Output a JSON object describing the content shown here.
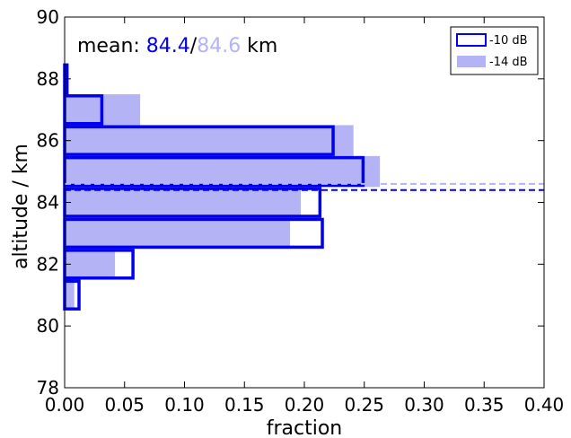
{
  "chart_data": {
    "type": "bar",
    "orientation": "horizontal-histogram",
    "xlabel": "fraction",
    "ylabel": "altitude / km",
    "xlim": [
      0.0,
      0.4
    ],
    "ylim": [
      78,
      90
    ],
    "xticks": [
      "0.00",
      "0.05",
      "0.10",
      "0.15",
      "0.20",
      "0.25",
      "0.30",
      "0.35",
      "0.40"
    ],
    "yticks": [
      "78",
      "80",
      "82",
      "84",
      "86",
      "88",
      "90"
    ],
    "grid": false,
    "legend_position": "top-right",
    "annotation": {
      "prefix": "mean: ",
      "value1": "84.4",
      "separator": "/",
      "value2": "84.6",
      "unit": " km"
    },
    "series": [
      {
        "name": "-10 dB",
        "style": "outline",
        "color": "#0000ee",
        "mean_line": 84.4,
        "bins": [
          {
            "y0": 80.5,
            "y1": 81.5,
            "value": 0.012
          },
          {
            "y0": 81.5,
            "y1": 82.5,
            "value": 0.057
          },
          {
            "y0": 82.5,
            "y1": 83.5,
            "value": 0.215
          },
          {
            "y0": 83.5,
            "y1": 84.5,
            "value": 0.213
          },
          {
            "y0": 84.5,
            "y1": 85.5,
            "value": 0.249
          },
          {
            "y0": 85.5,
            "y1": 86.5,
            "value": 0.224
          },
          {
            "y0": 86.5,
            "y1": 87.5,
            "value": 0.031
          },
          {
            "y0": 87.5,
            "y1": 88.5,
            "value": 0.002
          }
        ]
      },
      {
        "name": "-14 dB",
        "style": "filled",
        "color": "#b3b3f5",
        "mean_line": 84.6,
        "bins": [
          {
            "y0": 80.5,
            "y1": 81.5,
            "value": 0.008
          },
          {
            "y0": 81.5,
            "y1": 82.5,
            "value": 0.042
          },
          {
            "y0": 82.5,
            "y1": 83.5,
            "value": 0.188
          },
          {
            "y0": 83.5,
            "y1": 84.5,
            "value": 0.197
          },
          {
            "y0": 84.5,
            "y1": 85.5,
            "value": 0.263
          },
          {
            "y0": 85.5,
            "y1": 86.5,
            "value": 0.241
          },
          {
            "y0": 86.5,
            "y1": 87.5,
            "value": 0.063
          },
          {
            "y0": 87.5,
            "y1": 88.5,
            "value": 0.002
          }
        ]
      }
    ]
  }
}
